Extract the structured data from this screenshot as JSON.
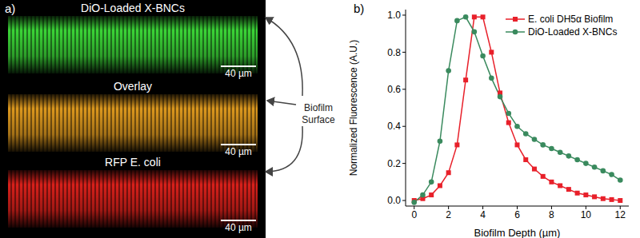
{
  "panels": {
    "a": {
      "label": "a)",
      "images": [
        {
          "title": "DiO-Loaded X-BNCs",
          "scale_bar": "40 µm",
          "color": "#3ee03a"
        },
        {
          "title": "Overlay",
          "scale_bar": "40 µm",
          "color": "#e8a020"
        },
        {
          "title": "RFP E. coli",
          "scale_bar": "40 µm",
          "color": "#e4221c"
        }
      ],
      "annotation": "Biofilm Surface"
    }
  },
  "chart_data": {
    "type": "line",
    "panel_label": "b)",
    "x_label": "Biofilm Depth (µm)",
    "y_label": "Normalized Fluorescence (A.U.)",
    "x": [
      0,
      0.5,
      1,
      1.5,
      2,
      2.5,
      3,
      3.5,
      4,
      4.5,
      5,
      5.5,
      6,
      6.5,
      7,
      7.5,
      8,
      8.5,
      9,
      9.5,
      10,
      10.5,
      11,
      11.5,
      12
    ],
    "series": [
      {
        "name": "E. coli DH5α Biofilm",
        "color": "#e8202a",
        "marker": "square",
        "values": [
          0,
          0.01,
          0.03,
          0.08,
          0.15,
          0.3,
          0.65,
          0.99,
          0.99,
          0.8,
          0.58,
          0.42,
          0.3,
          0.22,
          0.17,
          0.13,
          0.1,
          0.08,
          0.06,
          0.04,
          0.03,
          0.02,
          0.01,
          0.005,
          0
        ]
      },
      {
        "name": "DiO-Loaded X-BNCs",
        "color": "#3a8a5e",
        "marker": "circle",
        "values": [
          -0.01,
          0.03,
          0.1,
          0.32,
          0.7,
          0.97,
          0.99,
          0.91,
          0.78,
          0.66,
          0.56,
          0.47,
          0.4,
          0.36,
          0.33,
          0.3,
          0.28,
          0.26,
          0.24,
          0.22,
          0.2,
          0.18,
          0.16,
          0.14,
          0.11
        ]
      }
    ],
    "xlim": [
      -0.5,
      12.5
    ],
    "xticks": [
      0,
      2,
      4,
      6,
      8,
      10,
      12
    ],
    "ylim": [
      -0.03,
      1.03
    ],
    "yticks": [
      {
        "value": 0,
        "label": "0.0"
      },
      {
        "value": 0.2,
        "label": "0.2"
      },
      {
        "value": 0.4,
        "label": "0.4"
      },
      {
        "value": 0.6,
        "label": "0.6"
      },
      {
        "value": 0.8,
        "label": "0.8"
      },
      {
        "value": 1,
        "label": "1.0"
      }
    ],
    "grid": false,
    "legend": "top-right"
  }
}
